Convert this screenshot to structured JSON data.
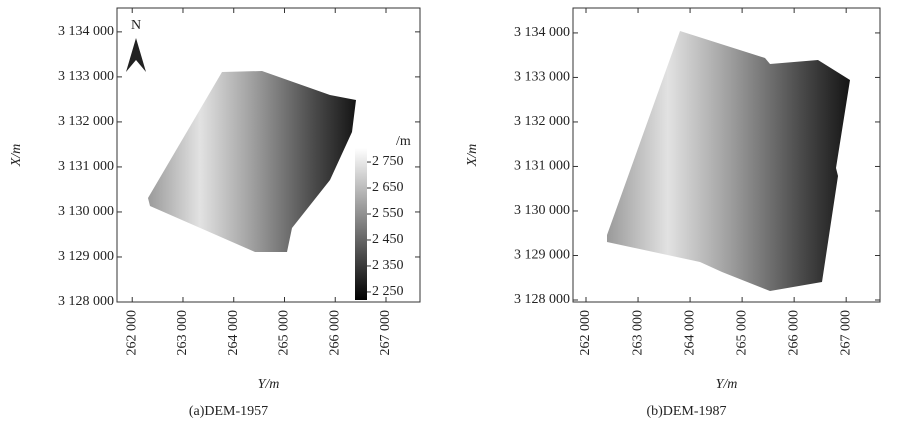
{
  "panels": [
    {
      "caption": "(a)DEM-1957",
      "xlabel": "Y/m",
      "ylabel": "X/m",
      "xlim": [
        261700,
        267670
      ],
      "ylim": [
        3128000,
        3134530
      ],
      "xticks": [
        {
          "value": 262000,
          "label": "262 000"
        },
        {
          "value": 263000,
          "label": "263 000"
        },
        {
          "value": 264000,
          "label": "264 000"
        },
        {
          "value": 265000,
          "label": "265 000"
        },
        {
          "value": 266000,
          "label": "266 000"
        },
        {
          "value": 267000,
          "label": "267 000"
        }
      ],
      "yticks": [
        {
          "value": 3128000,
          "label": "3 128 000"
        },
        {
          "value": 3129000,
          "label": "3 129 000"
        },
        {
          "value": 3130000,
          "label": "3 130 000"
        },
        {
          "value": 3131000,
          "label": "3 131 000"
        },
        {
          "value": 3132000,
          "label": "3 132 000"
        },
        {
          "value": 3133000,
          "label": "3 133 000"
        },
        {
          "value": 3134000,
          "label": "3 134 000"
        }
      ]
    },
    {
      "caption": "(b)DEM-1987",
      "xlabel": "Y/m",
      "ylabel": "X/m",
      "xlim": [
        261750,
        267650
      ],
      "ylim": [
        3127955,
        3134560
      ],
      "xticks": [
        {
          "value": 262000,
          "label": "262 000"
        },
        {
          "value": 263000,
          "label": "263 000"
        },
        {
          "value": 264000,
          "label": "264 000"
        },
        {
          "value": 265000,
          "label": "265 000"
        },
        {
          "value": 266000,
          "label": "266 000"
        },
        {
          "value": 267000,
          "label": "267 000"
        }
      ],
      "yticks": [
        {
          "value": 3128000,
          "label": "3 128 000"
        },
        {
          "value": 3129000,
          "label": "3 129 000"
        },
        {
          "value": 3130000,
          "label": "3 130 000"
        },
        {
          "value": 3131000,
          "label": "3 131 000"
        },
        {
          "value": 3132000,
          "label": "3 132 000"
        },
        {
          "value": 3133000,
          "label": "3 133 000"
        },
        {
          "value": 3134000,
          "label": "3 134 000"
        }
      ]
    }
  ],
  "colorbar": {
    "unit": "/m",
    "lim": [
      2219,
      2804
    ],
    "ticks": [
      {
        "value": 2250,
        "label": "2 250"
      },
      {
        "value": 2350,
        "label": "2 350"
      },
      {
        "value": 2450,
        "label": "2 450"
      },
      {
        "value": 2550,
        "label": "2 550"
      },
      {
        "value": 2650,
        "label": "2 650"
      },
      {
        "value": 2750,
        "label": "2 750"
      }
    ]
  },
  "north_label": "N"
}
